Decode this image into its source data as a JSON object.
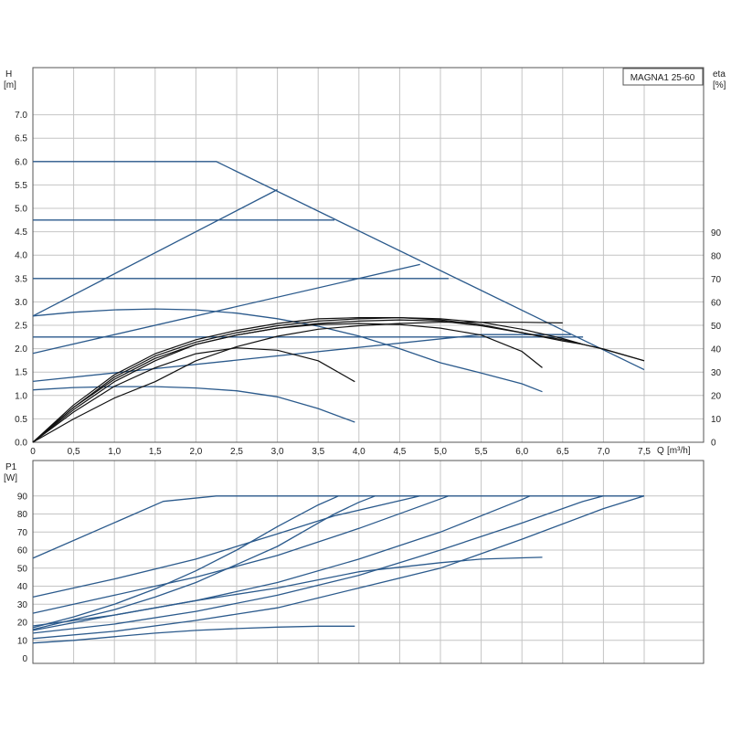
{
  "chart_data": [
    {
      "type": "line",
      "title": "MAGNA1 25-60",
      "ylabel": "H",
      "yunit": "[m]",
      "y2label": "eta",
      "y2unit": "[%]",
      "xlabel": "Q",
      "xunit": "[m³/h]",
      "xlim": [
        0,
        8
      ],
      "ylim": [
        0,
        7.5
      ],
      "y2lim": [
        0,
        100
      ],
      "grid": true,
      "x_ticks": [
        "0",
        "0,5",
        "1,0",
        "1,5",
        "2,0",
        "2,5",
        "3,0",
        "3,5",
        "4,0",
        "4,5",
        "5,0",
        "5,5",
        "6,0",
        "6,5",
        "7,0",
        "7,5"
      ],
      "y_ticks": [
        "0.0",
        "0.5",
        "1.0",
        "1.5",
        "2.0",
        "2.5",
        "3.0",
        "3.5",
        "4.0",
        "4.5",
        "5.0",
        "5.5",
        "6.0",
        "6.5",
        "7.0"
      ],
      "y2_ticks": [
        "0",
        "10",
        "20",
        "30",
        "40",
        "50",
        "60",
        "70",
        "80",
        "90"
      ],
      "colors": {
        "head_curves": "#2b5a8c",
        "efficiency_curves": "#111111"
      },
      "head_curves": [
        {
          "points": [
            [
              0,
              6.0
            ],
            [
              2.25,
              6.0
            ],
            [
              7.5,
              1.55
            ]
          ]
        },
        {
          "points": [
            [
              0,
              4.75
            ],
            [
              3.7,
              4.75
            ]
          ]
        },
        {
          "points": [
            [
              0,
              3.5
            ],
            [
              5.1,
              3.5
            ]
          ]
        },
        {
          "points": [
            [
              0,
              2.25
            ],
            [
              6.75,
              2.25
            ]
          ]
        },
        {
          "points": [
            [
              0,
              2.7
            ],
            [
              3.0,
              5.4
            ]
          ]
        },
        {
          "points": [
            [
              0,
              1.9
            ],
            [
              4.75,
              3.8
            ]
          ]
        },
        {
          "points": [
            [
              0,
              1.3
            ],
            [
              5.5,
              2.3
            ],
            [
              6.6,
              2.3
            ]
          ]
        },
        {
          "points": [
            [
              0,
              2.7
            ],
            [
              0.5,
              2.78
            ],
            [
              1.0,
              2.83
            ],
            [
              1.5,
              2.85
            ],
            [
              2.0,
              2.83
            ],
            [
              2.5,
              2.76
            ],
            [
              3.0,
              2.64
            ],
            [
              3.5,
              2.48
            ],
            [
              4.0,
              2.27
            ],
            [
              4.5,
              2.0
            ],
            [
              5.0,
              1.7
            ],
            [
              5.5,
              1.48
            ],
            [
              6.0,
              1.25
            ],
            [
              6.25,
              1.08
            ]
          ]
        },
        {
          "points": [
            [
              0,
              1.12
            ],
            [
              0.5,
              1.17
            ],
            [
              1.0,
              1.19
            ],
            [
              1.5,
              1.19
            ],
            [
              2.0,
              1.16
            ],
            [
              2.5,
              1.1
            ],
            [
              3.0,
              0.97
            ],
            [
              3.5,
              0.72
            ],
            [
              3.95,
              0.43
            ]
          ]
        }
      ],
      "efficiency_curves": [
        {
          "points": [
            [
              0,
              0
            ],
            [
              0.5,
              14
            ],
            [
              1.0,
              26
            ],
            [
              1.5,
              35
            ],
            [
              2.0,
              42
            ],
            [
              2.5,
              46
            ],
            [
              3.0,
              49
            ],
            [
              3.5,
              51
            ],
            [
              4.0,
              52
            ],
            [
              4.5,
              52.5
            ],
            [
              5.0,
              52
            ],
            [
              5.5,
              50
            ],
            [
              6.0,
              47
            ],
            [
              6.5,
              44
            ],
            [
              6.75,
              42
            ],
            [
              7.0,
              40
            ],
            [
              7.5,
              35
            ]
          ]
        },
        {
          "points": [
            [
              0,
              0
            ],
            [
              0.5,
              15
            ],
            [
              1.0,
              28
            ],
            [
              1.5,
              37
            ],
            [
              2.0,
              43
            ],
            [
              2.5,
              47
            ],
            [
              3.0,
              50
            ],
            [
              3.5,
              52
            ],
            [
              4.0,
              53
            ],
            [
              4.5,
              53.5
            ],
            [
              5.0,
              53
            ],
            [
              5.5,
              51.5
            ],
            [
              6.0,
              48.5
            ],
            [
              6.5,
              44.5
            ],
            [
              6.75,
              42
            ],
            [
              7.0,
              40
            ],
            [
              7.5,
              35
            ]
          ]
        },
        {
          "points": [
            [
              0,
              0
            ],
            [
              0.5,
              16
            ],
            [
              1.0,
              29
            ],
            [
              1.5,
              38
            ],
            [
              2.0,
              44
            ],
            [
              2.5,
              48
            ],
            [
              3.0,
              51
            ],
            [
              3.5,
              53
            ],
            [
              4.0,
              53.5
            ],
            [
              4.5,
              53.5
            ],
            [
              5.0,
              52.5
            ],
            [
              5.5,
              50.5
            ],
            [
              6.0,
              47
            ],
            [
              6.5,
              43.5
            ],
            [
              6.75,
              42
            ]
          ]
        },
        {
          "points": [
            [
              0,
              0
            ],
            [
              0.5,
              15
            ],
            [
              1.0,
              27
            ],
            [
              1.5,
              36
            ],
            [
              2.0,
              42
            ],
            [
              2.5,
              46
            ],
            [
              3.0,
              49
            ],
            [
              3.5,
              50.5
            ],
            [
              4.0,
              51
            ],
            [
              4.5,
              50.5
            ],
            [
              5.0,
              49
            ],
            [
              5.5,
              46
            ],
            [
              6.0,
              39
            ],
            [
              6.25,
              32
            ]
          ]
        },
        {
          "points": [
            [
              0,
              0
            ],
            [
              0.5,
              13
            ],
            [
              1.0,
              24
            ],
            [
              1.5,
              32
            ],
            [
              2.0,
              38
            ],
            [
              2.5,
              40.5
            ],
            [
              3.0,
              39.5
            ],
            [
              3.5,
              35
            ],
            [
              3.95,
              26
            ]
          ]
        },
        {
          "points": [
            [
              0,
              0
            ],
            [
              0.5,
              10
            ],
            [
              1.0,
              19
            ],
            [
              1.5,
              26
            ],
            [
              2.0,
              35
            ],
            [
              2.5,
              41
            ],
            [
              3.0,
              45.5
            ],
            [
              3.5,
              48.5
            ],
            [
              4.0,
              50
            ],
            [
              4.5,
              51
            ],
            [
              5.0,
              51.5
            ],
            [
              5.5,
              51.5
            ],
            [
              6.0,
              51.5
            ],
            [
              6.5,
              51.2
            ]
          ]
        }
      ]
    },
    {
      "type": "line",
      "ylabel": "P1",
      "yunit": "[W]",
      "xlim": [
        0,
        8
      ],
      "ylim": [
        0,
        95
      ],
      "grid": true,
      "y_ticks": [
        "0",
        "10",
        "20",
        "30",
        "40",
        "50",
        "60",
        "70",
        "80",
        "90"
      ],
      "colors": {
        "power_curves": "#2b5a8c"
      },
      "power_curves": [
        {
          "points": [
            [
              0,
              55.5
            ],
            [
              1.6,
              87
            ],
            [
              2.25,
              90
            ],
            [
              7.5,
              90
            ]
          ]
        },
        {
          "points": [
            [
              0,
              34
            ],
            [
              1.0,
              44
            ],
            [
              2.0,
              55
            ],
            [
              3.0,
              69
            ],
            [
              3.7,
              79
            ],
            [
              4.75,
              90
            ]
          ]
        },
        {
          "points": [
            [
              0,
              25
            ],
            [
              1.0,
              35
            ],
            [
              2.0,
              45
            ],
            [
              3.0,
              57
            ],
            [
              4.0,
              72
            ],
            [
              5.1,
              90
            ]
          ]
        },
        {
          "points": [
            [
              0,
              16
            ],
            [
              1.0,
              27
            ],
            [
              1.5,
              34
            ],
            [
              2.0,
              42
            ],
            [
              2.5,
              52
            ],
            [
              3.0,
              62
            ],
            [
              3.5,
              75
            ],
            [
              3.7,
              80
            ],
            [
              4.0,
              86.5
            ],
            [
              4.2,
              90
            ]
          ]
        },
        {
          "points": [
            [
              0,
              18
            ],
            [
              1.0,
              24
            ],
            [
              2.0,
              32
            ],
            [
              3.0,
              42
            ],
            [
              4.0,
              55
            ],
            [
              5.0,
              70
            ],
            [
              6.0,
              88
            ],
            [
              6.1,
              90
            ]
          ]
        },
        {
          "points": [
            [
              0,
              14
            ],
            [
              1.0,
              19
            ],
            [
              2.0,
              26
            ],
            [
              3.0,
              35
            ],
            [
              4.0,
              46
            ],
            [
              5.0,
              60
            ],
            [
              6.0,
              75
            ],
            [
              6.75,
              87
            ],
            [
              7.0,
              90
            ]
          ]
        },
        {
          "points": [
            [
              0,
              17
            ],
            [
              0.5,
              23
            ],
            [
              1.0,
              30
            ],
            [
              1.5,
              38.5
            ],
            [
              2.0,
              48.5
            ],
            [
              2.5,
              60
            ],
            [
              3.0,
              73
            ],
            [
              3.5,
              85
            ],
            [
              3.75,
              90
            ]
          ]
        },
        {
          "points": [
            [
              0,
              11
            ],
            [
              1.0,
              15
            ],
            [
              2.0,
              21
            ],
            [
              3.0,
              28
            ],
            [
              4.0,
              39
            ],
            [
              5.0,
              50
            ],
            [
              6.0,
              66
            ],
            [
              7.0,
              83
            ],
            [
              7.5,
              90
            ]
          ]
        },
        {
          "points": [
            [
              0,
              15.5
            ],
            [
              1.0,
              24
            ],
            [
              2.0,
              32
            ],
            [
              3.0,
              39
            ],
            [
              4.0,
              48
            ],
            [
              5.0,
              53
            ],
            [
              5.5,
              55
            ],
            [
              6.0,
              55.7
            ],
            [
              6.25,
              56
            ]
          ]
        },
        {
          "points": [
            [
              0,
              8.5
            ],
            [
              0.5,
              10
            ],
            [
              1.0,
              12
            ],
            [
              1.5,
              14
            ],
            [
              2.0,
              15.5
            ],
            [
              2.5,
              16.5
            ],
            [
              3.0,
              17.3
            ],
            [
              3.5,
              17.8
            ],
            [
              3.95,
              17.8
            ]
          ]
        }
      ]
    }
  ]
}
